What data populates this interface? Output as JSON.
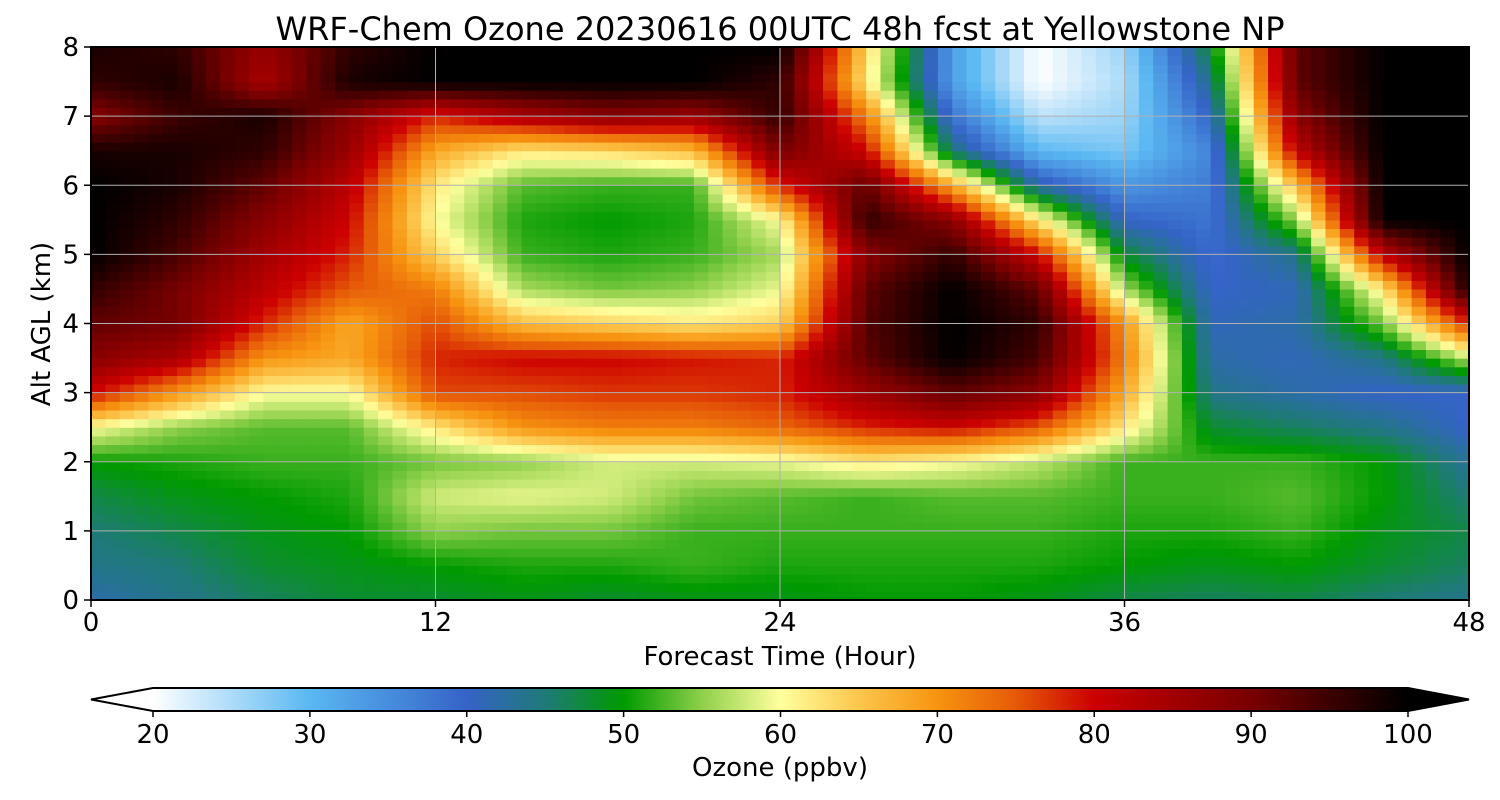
{
  "chart_data": {
    "type": "heatmap",
    "title": "WRF-Chem Ozone  20230616 00UTC 48h fcst at Yellowstone NP",
    "xlabel": "Forecast Time (Hour)",
    "ylabel": "Alt AGL (km)",
    "xlim": [
      0,
      48
    ],
    "ylim": [
      0,
      8
    ],
    "xticks": [
      "0",
      "12",
      "24",
      "36",
      "48"
    ],
    "yticks": [
      "0",
      "1",
      "2",
      "3",
      "4",
      "5",
      "6",
      "7",
      "8"
    ],
    "grid": true,
    "x": [
      0,
      3,
      6,
      9,
      12,
      15,
      18,
      21,
      24,
      27,
      30,
      33,
      36,
      39,
      42,
      45,
      48
    ],
    "y": [
      0,
      0.5,
      1,
      1.5,
      2,
      2.5,
      3,
      3.5,
      4,
      4.5,
      5,
      5.5,
      6,
      6.5,
      7,
      7.5,
      8
    ],
    "z": [
      [
        42,
        44,
        46,
        48,
        48,
        49,
        48,
        49,
        49,
        50,
        50,
        49,
        47,
        46,
        47,
        45,
        44
      ],
      [
        44,
        45,
        48,
        49,
        50,
        51,
        51,
        52,
        51,
        51,
        51,
        51,
        50,
        49,
        50,
        48,
        46
      ],
      [
        45,
        47,
        49,
        50,
        55,
        54,
        54,
        52,
        52,
        52,
        52,
        52,
        51,
        51,
        52,
        49,
        47
      ],
      [
        47,
        49,
        50,
        51,
        58,
        59,
        58,
        54,
        53,
        52,
        53,
        53,
        52,
        52,
        53,
        50,
        45
      ],
      [
        50,
        51,
        52,
        52,
        54,
        55,
        58,
        58,
        59,
        62,
        60,
        57,
        52,
        52,
        52,
        50,
        43
      ],
      [
        60,
        55,
        53,
        53,
        62,
        70,
        72,
        72,
        74,
        78,
        80,
        75,
        62,
        48,
        46,
        44,
        40
      ],
      [
        80,
        70,
        60,
        60,
        76,
        76,
        77,
        77,
        78,
        86,
        92,
        88,
        68,
        44,
        42,
        40,
        40
      ],
      [
        88,
        84,
        70,
        68,
        78,
        80,
        80,
        79,
        78,
        92,
        100,
        94,
        72,
        42,
        41,
        44,
        57
      ],
      [
        92,
        90,
        78,
        68,
        76,
        66,
        64,
        62,
        64,
        93,
        100,
        96,
        70,
        41,
        42,
        54,
        78
      ],
      [
        96,
        90,
        82,
        75,
        72,
        56,
        54,
        55,
        59,
        92,
        100,
        92,
        56,
        40,
        41,
        62,
        98
      ],
      [
        100,
        94,
        85,
        78,
        64,
        52,
        51,
        52,
        56,
        88,
        96,
        80,
        48,
        39,
        44,
        82,
        100
      ],
      [
        100,
        96,
        88,
        80,
        60,
        51,
        50,
        51,
        60,
        96,
        88,
        62,
        40,
        38,
        55,
        100,
        100
      ],
      [
        100,
        98,
        92,
        82,
        62,
        53,
        52,
        52,
        78,
        92,
        68,
        42,
        34,
        37,
        66,
        100,
        100
      ],
      [
        98,
        98,
        96,
        86,
        68,
        62,
        63,
        66,
        90,
        80,
        45,
        30,
        28,
        36,
        82,
        100,
        100
      ],
      [
        88,
        95,
        98,
        88,
        78,
        84,
        88,
        86,
        96,
        72,
        38,
        24,
        26,
        40,
        88,
        100,
        100
      ],
      [
        96,
        98,
        84,
        98,
        100,
        100,
        100,
        100,
        96,
        62,
        33,
        20,
        25,
        44,
        92,
        100,
        100
      ],
      [
        98,
        96,
        86,
        96,
        100,
        100,
        100,
        100,
        100,
        64,
        33,
        20,
        26,
        48,
        92,
        100,
        100
      ]
    ],
    "colorbar": {
      "label": "Ozone  (ppbv)",
      "min": 20,
      "max": 100,
      "ticks": [
        "20",
        "30",
        "40",
        "50",
        "60",
        "70",
        "80",
        "90",
        "100"
      ],
      "extend": "both",
      "colormap": [
        [
          20,
          "#ffffff"
        ],
        [
          30,
          "#5ab8f2"
        ],
        [
          40,
          "#3563c8"
        ],
        [
          45,
          "#1f7a78"
        ],
        [
          50,
          "#009a00"
        ],
        [
          55,
          "#8fd04a"
        ],
        [
          60,
          "#ffff9e"
        ],
        [
          65,
          "#fcc64c"
        ],
        [
          70,
          "#f79410"
        ],
        [
          75,
          "#e65a08"
        ],
        [
          80,
          "#cc0000"
        ],
        [
          90,
          "#780000"
        ],
        [
          100,
          "#000000"
        ]
      ]
    }
  }
}
